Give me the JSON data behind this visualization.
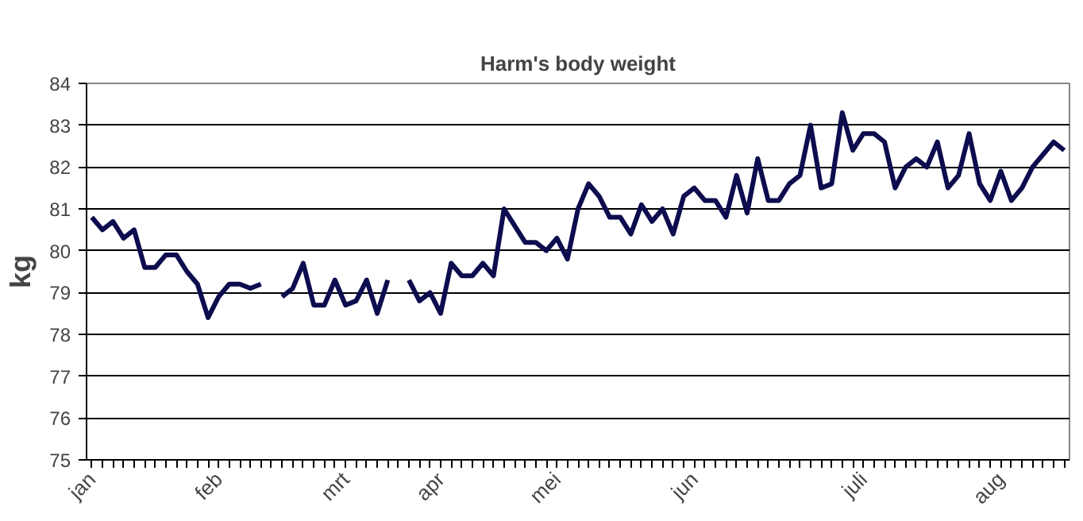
{
  "chart_data": {
    "type": "line",
    "title": "Harm's body weight",
    "ylabel": "kg",
    "categories": [
      "jan",
      null,
      null,
      null,
      null,
      null,
      null,
      null,
      null,
      null,
      null,
      null,
      "feb",
      null,
      null,
      null,
      null,
      null,
      null,
      null,
      null,
      null,
      null,
      null,
      "mrt",
      null,
      null,
      null,
      null,
      null,
      null,
      null,
      null,
      "apr",
      null,
      null,
      null,
      null,
      null,
      null,
      null,
      null,
      null,
      null,
      "mei",
      null,
      null,
      null,
      null,
      null,
      null,
      null,
      null,
      null,
      null,
      null,
      null,
      "jun",
      null,
      null,
      null,
      null,
      null,
      null,
      null,
      null,
      null,
      null,
      null,
      null,
      null,
      null,
      null,
      "juli",
      null,
      null,
      null,
      null,
      null,
      null,
      null,
      null,
      null,
      null,
      null,
      null,
      "aug",
      null,
      null,
      null,
      null,
      null,
      null
    ],
    "series": [
      {
        "color": "#0c0c4e",
        "values": [
          80.8,
          80.5,
          80.7,
          80.3,
          80.5,
          79.6,
          79.6,
          79.9,
          79.9,
          79.5,
          79.2,
          78.4,
          78.9,
          79.2,
          79.2,
          79.1,
          79.2,
          null,
          78.9,
          79.1,
          79.7,
          78.7,
          78.7,
          79.3,
          78.7,
          78.8,
          79.3,
          78.5,
          79.3,
          null,
          79.3,
          78.8,
          79.0,
          78.5,
          79.7,
          79.4,
          79.4,
          79.7,
          79.4,
          81.0,
          80.6,
          80.2,
          80.2,
          80.0,
          80.3,
          79.8,
          81.0,
          81.6,
          81.3,
          80.8,
          80.8,
          80.4,
          81.1,
          80.7,
          81.0,
          80.4,
          81.3,
          81.5,
          81.2,
          81.2,
          80.8,
          81.8,
          80.9,
          82.2,
          81.2,
          81.2,
          81.6,
          81.8,
          83.0,
          81.5,
          81.6,
          83.3,
          82.4,
          82.8,
          82.8,
          82.6,
          81.5,
          82.0,
          82.2,
          82.0,
          82.6,
          81.5,
          81.8,
          82.8,
          81.6,
          81.2,
          81.9,
          81.2,
          81.5,
          82.0,
          82.3,
          82.6,
          82.4
        ]
      }
    ],
    "ylim": [
      75,
      84
    ],
    "yticks": [
      75,
      76,
      77,
      78,
      79,
      80,
      81,
      82,
      83,
      84
    ],
    "grid": "y",
    "marker": "none",
    "line_style": "solid"
  }
}
